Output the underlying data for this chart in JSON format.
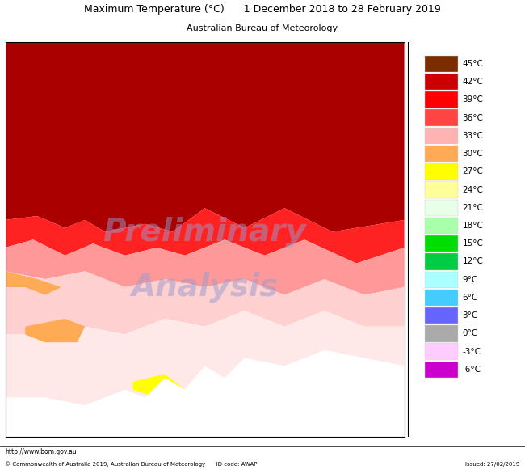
{
  "title_line1": "Maximum Temperature (°C)      1 December 2018 to 28 February 2019",
  "title_line2": "Australian Bureau of Meteorology",
  "footer_left_top": "http://www.bom.gov.au",
  "footer_left_bottom": "© Commonwealth of Australia 2019, Australian Bureau of Meteorology      ID code: AWAP",
  "footer_right": "Issued: 27/02/2019",
  "watermark_line1": "Preliminary",
  "watermark_line2": "Analysis",
  "colorbar_labels": [
    "45°C",
    "42°C",
    "39°C",
    "36°C",
    "33°C",
    "30°C",
    "27°C",
    "24°C",
    "21°C",
    "18°C",
    "15°C",
    "12°C",
    "9°C",
    "6°C",
    "3°C",
    "0°C",
    "-3°C",
    "-6°C"
  ],
  "colorbar_colors": [
    "#7B2D00",
    "#CC0000",
    "#FF0000",
    "#FF4444",
    "#FFB3B3",
    "#FFAA55",
    "#FFFF00",
    "#FFFF99",
    "#E8FFE8",
    "#AAFFAA",
    "#00DD00",
    "#00CC44",
    "#AAFFFF",
    "#44CCFF",
    "#6666FF",
    "#AAAAAA",
    "#FFCCFF",
    "#CC00CC"
  ],
  "map_bg": "#FFFFFF",
  "outer_bg": "#FFFFFF",
  "map_border_color": "#000000",
  "map_region_colors": {
    "dark_red": "#AA0000",
    "red": "#FF0000",
    "light_pink": "#FFB3B3",
    "pink": "#FF8888",
    "orange": "#FFAA55",
    "yellow": "#FFFF00",
    "pale_yellow": "#FFFFCC"
  }
}
